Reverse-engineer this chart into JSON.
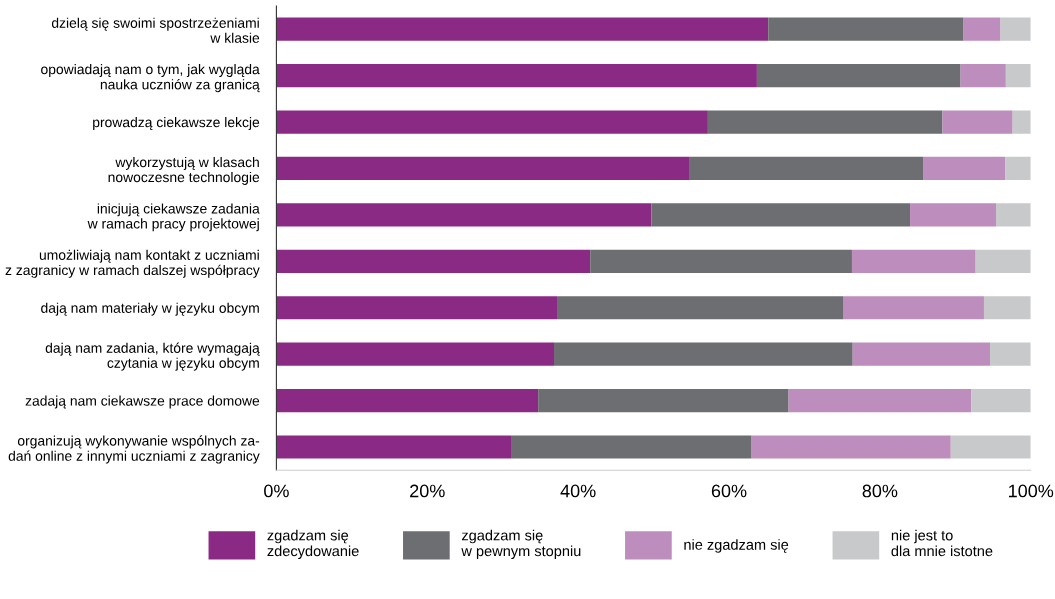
{
  "chart_data": {
    "type": "bar",
    "orientation": "horizontal",
    "stacked": true,
    "categories": [
      "dzielą się swoimi spostrzeżeniami\nw klasie",
      "opowiadają nam o tym, jak wygląda\nnauka uczniów za granicą",
      "prowadzą ciekawsze lekcje",
      "wykorzystują w klasach\nnowoczesne technologie",
      "inicjują ciekawsze zadania\nw ramach pracy projektowej",
      "umożliwiają nam kontakt z uczniami\nz zagranicy w ramach dalszej współpracy",
      "dają nam materiały w języku obcym",
      "dają nam zadania, które wymagają\nczytania w języku obcym",
      "zadają nam ciekawsze prace domowe",
      "organizują wykonywanie wspólnych za-\ndań online z innymi uczniami z zagranicy"
    ],
    "series": [
      {
        "name": "zgadzam się\nzdecydowanie",
        "color": "#8b2a84",
        "values": [
          65.2,
          63.7,
          57.2,
          54.7,
          49.7,
          41.6,
          37.2,
          36.8,
          34.7,
          31.1
        ]
      },
      {
        "name": "zgadzam się\nw pewnym stopniu",
        "color": "#6d6e71",
        "values": [
          25.9,
          27.0,
          31.1,
          31.1,
          34.3,
          34.7,
          38.0,
          39.6,
          33.2,
          31.9
        ]
      },
      {
        "name": "nie zgadzam się",
        "color": "#bd8dbd",
        "values": [
          4.9,
          6.0,
          9.3,
          10.8,
          11.4,
          16.4,
          18.6,
          18.2,
          24.2,
          26.4
        ]
      },
      {
        "name": "nie jest to\ndla mnie istotne",
        "color": "#c8c9cb",
        "values": [
          4.0,
          3.3,
          2.4,
          3.4,
          4.6,
          7.3,
          6.2,
          5.4,
          7.9,
          10.6
        ]
      }
    ],
    "xlim": [
      0,
      100
    ],
    "xticks": [
      {
        "value": 0,
        "label": "0%"
      },
      {
        "value": 20,
        "label": "20%"
      },
      {
        "value": 40,
        "label": "40%"
      },
      {
        "value": 60,
        "label": "60%"
      },
      {
        "value": 80,
        "label": "80%"
      },
      {
        "value": 100,
        "label": "100%"
      }
    ],
    "grid": false,
    "legend": "bottom"
  }
}
